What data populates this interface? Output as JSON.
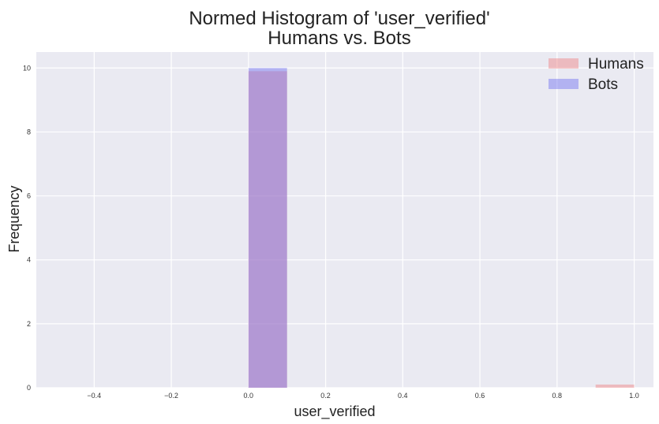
{
  "chart_data": {
    "type": "bar",
    "title_lines": [
      "Normed Histogram of 'user_verified'",
      "Humans vs. Bots"
    ],
    "xlabel": "user_verified",
    "ylabel": "Frequency",
    "xlim": [
      -0.55,
      1.05
    ],
    "ylim": [
      0,
      10.5
    ],
    "xticks": [
      -0.4,
      -0.2,
      0.0,
      0.2,
      0.4,
      0.6,
      0.8,
      1.0
    ],
    "xtick_labels": [
      "−0.4",
      "−0.2",
      "0.0",
      "0.2",
      "0.4",
      "0.6",
      "0.8",
      "1.0"
    ],
    "yticks": [
      0,
      2,
      4,
      6,
      8,
      10
    ],
    "ytick_labels": [
      "0",
      "2",
      "4",
      "6",
      "8",
      "10"
    ],
    "grid": true,
    "legend_position": "top-right",
    "bin_width": 0.1,
    "series": [
      {
        "name": "Humans",
        "color": "#f08080",
        "opacity": 0.45,
        "bins": [
          {
            "x": 0.0,
            "value": 9.9
          },
          {
            "x": 0.9,
            "value": 0.1
          }
        ]
      },
      {
        "name": "Bots",
        "color": "#6f6ff0",
        "opacity": 0.45,
        "bins": [
          {
            "x": 0.0,
            "value": 10.0
          }
        ]
      }
    ]
  },
  "colors": {
    "plot_background": "#eaeaf2",
    "grid": "#ffffff"
  }
}
